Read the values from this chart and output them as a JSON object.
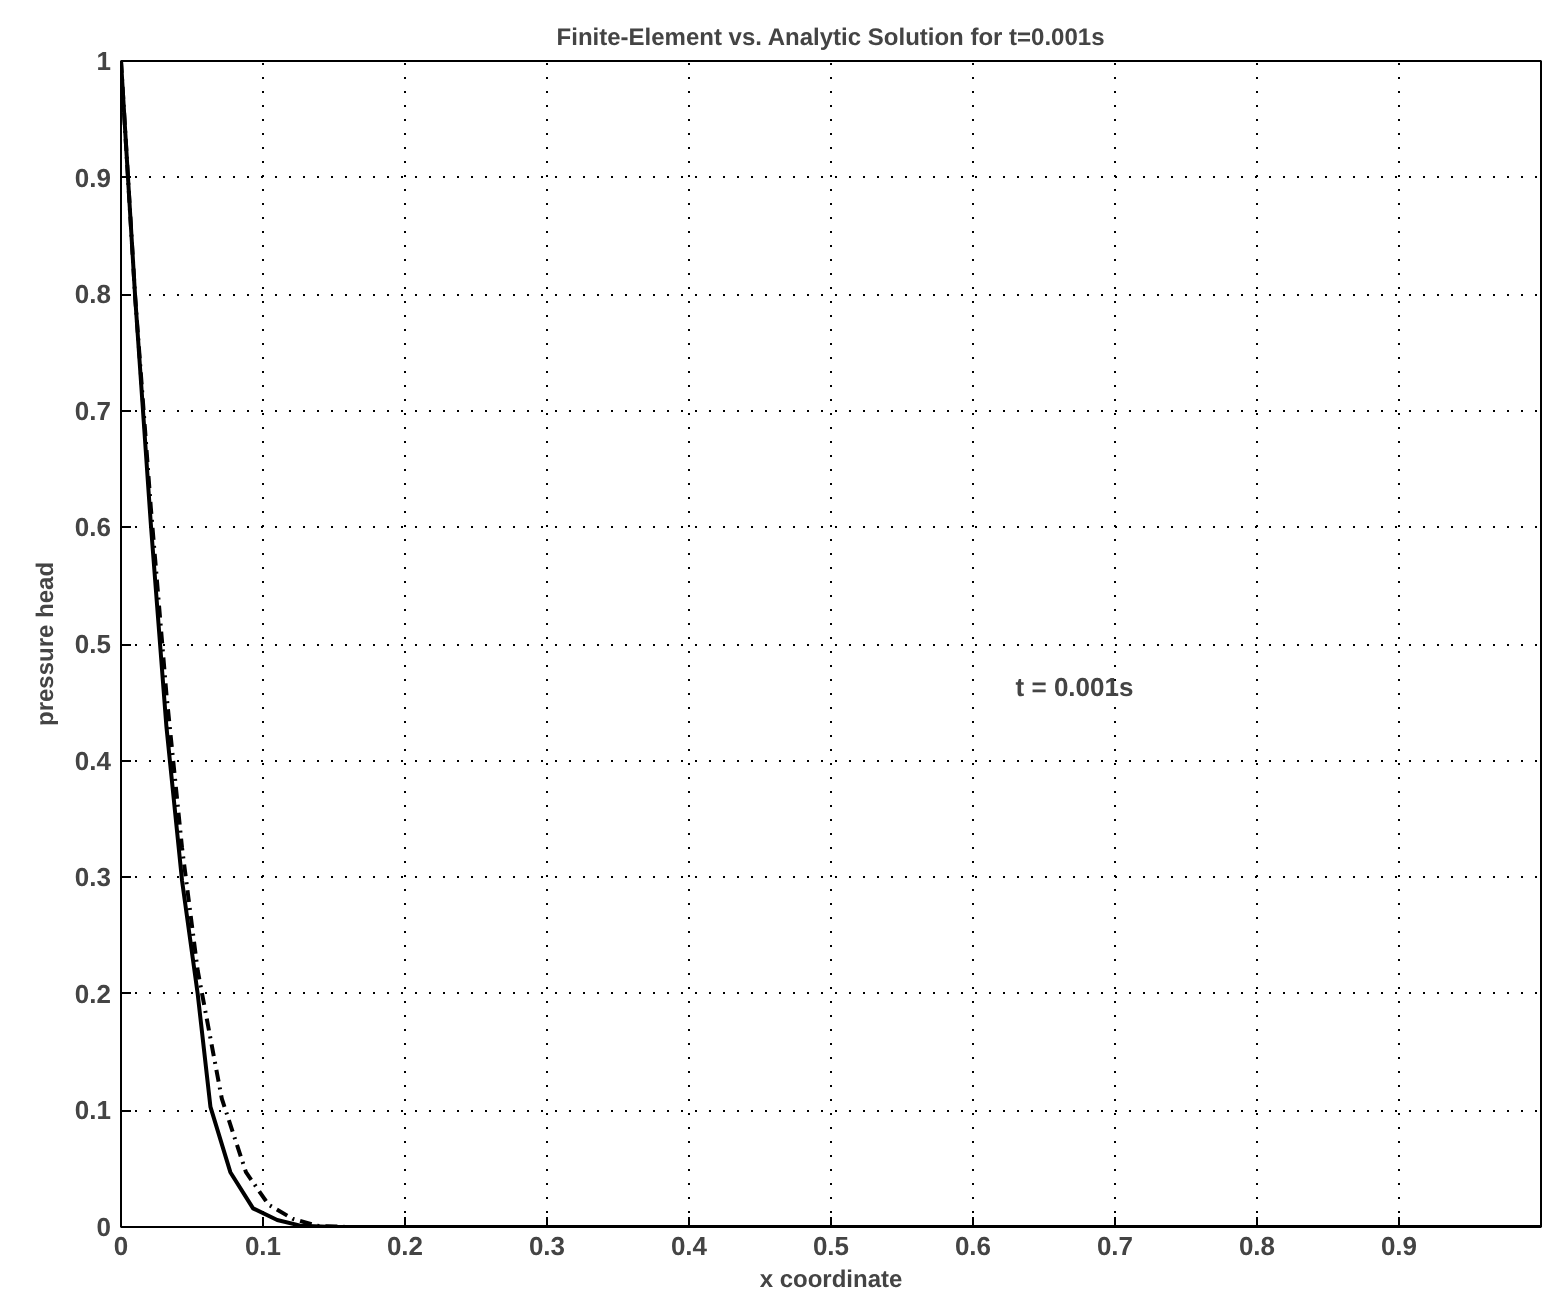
{
  "chart_data": {
    "type": "line",
    "title": "Finite-Element vs. Analytic Solution for t=0.001s",
    "xlabel": "x coordinate",
    "ylabel": "pressure head",
    "annotations": [
      "t = 0.001s"
    ],
    "series": [
      {
        "color": "#000000",
        "line_style": "solid",
        "x": [
          0,
          0.01,
          0.021,
          0.032,
          0.043,
          0.054,
          0.063,
          0.077,
          0.093,
          0.11,
          0.127,
          0.15,
          1
        ],
        "values": [
          1,
          0.797,
          0.603,
          0.429,
          0.297,
          0.2,
          0.103,
          0.047,
          0.016,
          0.006,
          0.001,
          0,
          0
        ]
      },
      {
        "color": "#000000",
        "line_style": "dashed",
        "x": [
          0,
          0.01,
          0.021,
          0.032,
          0.043,
          0.054,
          0.071,
          0.088,
          0.104,
          0.121,
          0.138,
          0.16,
          1
        ],
        "values": [
          1,
          0.797,
          0.617,
          0.457,
          0.325,
          0.22,
          0.11,
          0.047,
          0.019,
          0.007,
          0.001,
          0,
          0
        ]
      }
    ],
    "xlim": [
      0,
      1
    ],
    "ylim": [
      0,
      1
    ],
    "xticks": [
      0,
      0.1,
      0.2,
      0.3,
      0.4,
      0.5,
      0.6,
      0.7,
      0.8,
      0.9,
      {
        "value": 1,
        "label": null
      }
    ],
    "yticks": [
      0,
      0.1,
      0.2,
      0.3,
      0.4,
      0.5,
      0.6,
      0.7,
      0.8,
      0.9,
      1
    ],
    "grid": true
  }
}
